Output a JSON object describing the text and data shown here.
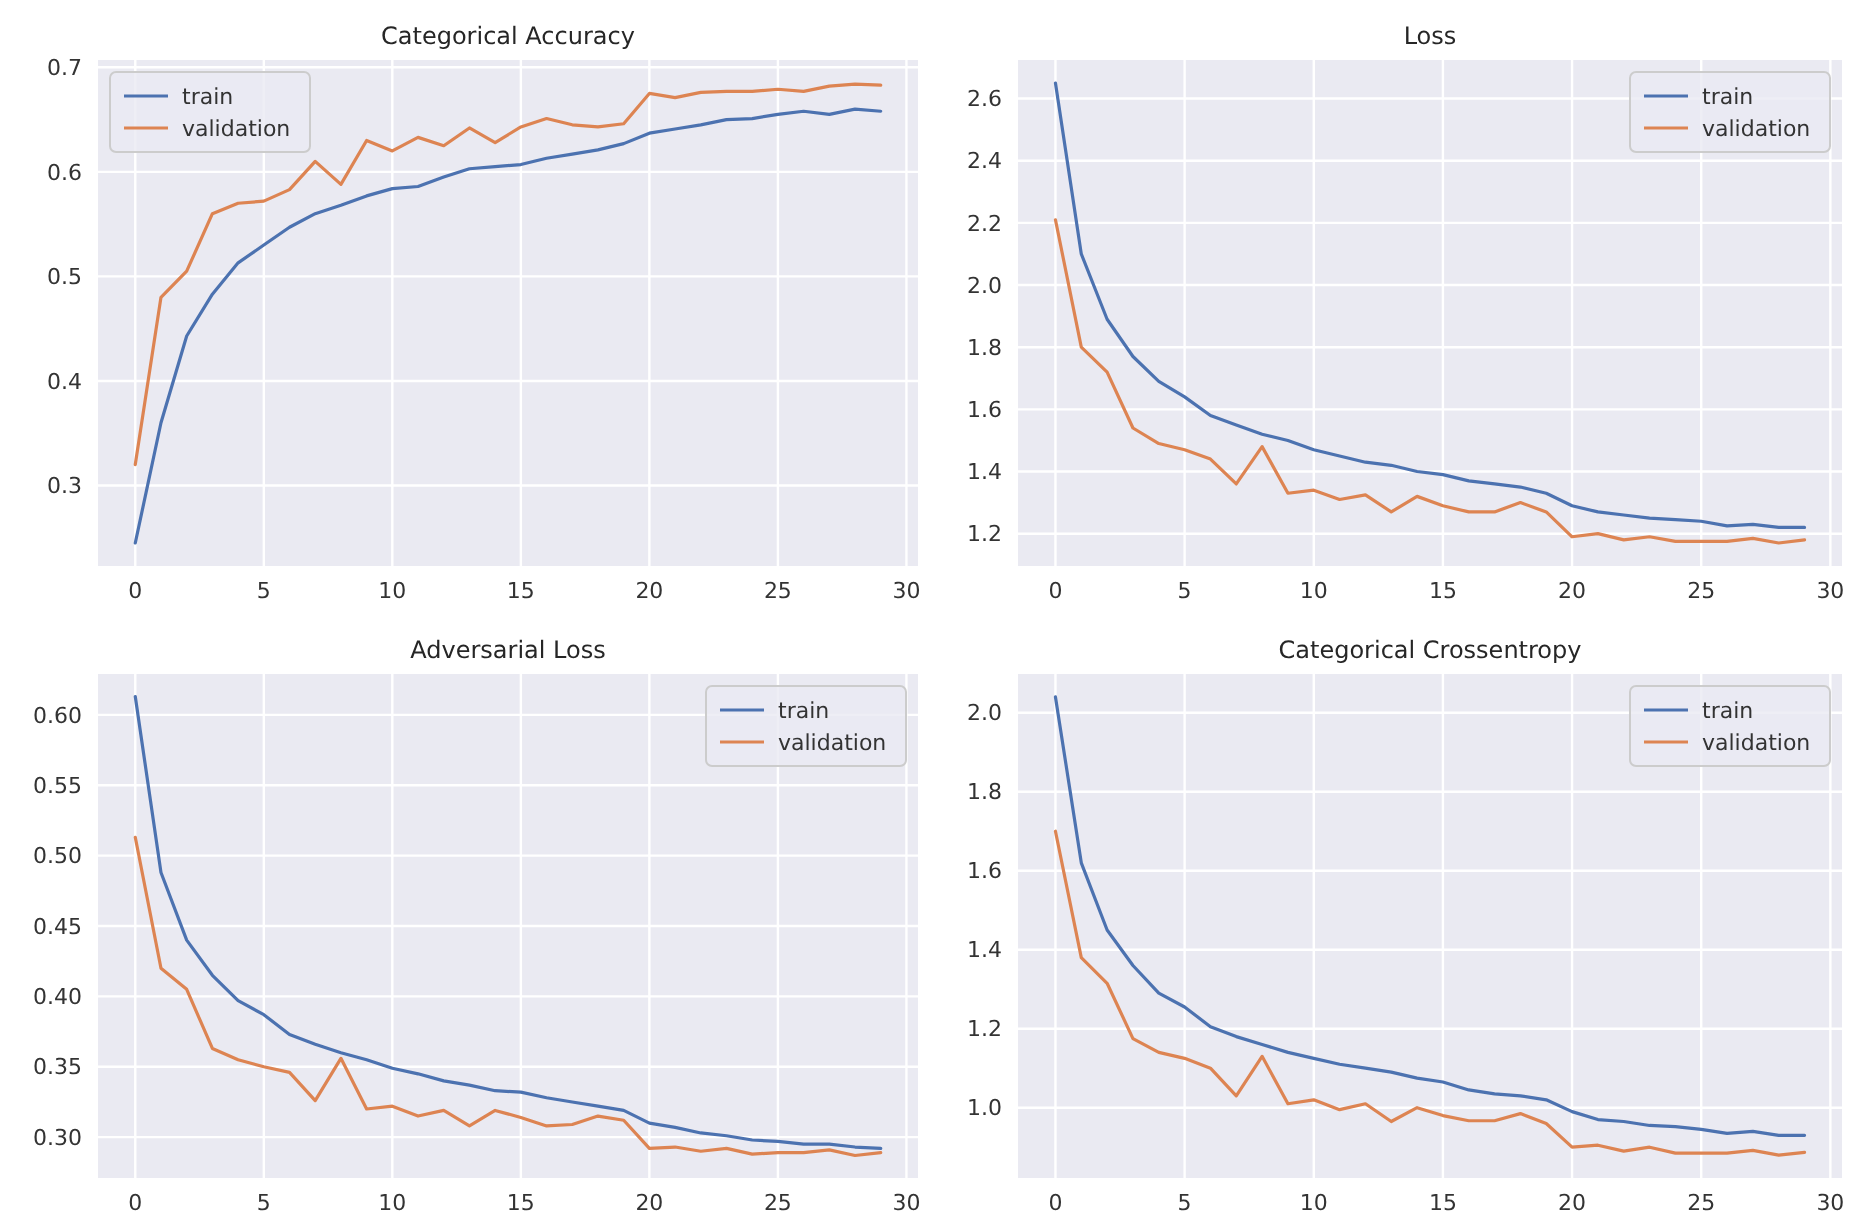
{
  "chart_data": [
    {
      "type": "line",
      "title": "Categorical Accuracy",
      "legend": "top left",
      "grid": true,
      "xlim": [
        -1.45,
        30.45
      ],
      "xticks": [
        0,
        5,
        10,
        15,
        20,
        25,
        30
      ],
      "ylim": [
        0.223,
        0.707
      ],
      "yticks": [
        0.3,
        0.4,
        0.5,
        0.6,
        0.7
      ],
      "x": [
        0,
        1,
        2,
        3,
        4,
        5,
        6,
        7,
        8,
        9,
        10,
        11,
        12,
        13,
        14,
        15,
        16,
        17,
        18,
        19,
        20,
        21,
        22,
        23,
        24,
        25,
        26,
        27,
        28,
        29
      ],
      "series": [
        {
          "name": "train",
          "color": "#4c72b0",
          "values": [
            0.245,
            0.36,
            0.443,
            0.483,
            0.513,
            0.53,
            0.547,
            0.56,
            0.568,
            0.577,
            0.584,
            0.586,
            0.595,
            0.603,
            0.605,
            0.607,
            0.613,
            0.617,
            0.621,
            0.627,
            0.637,
            0.641,
            0.645,
            0.65,
            0.651,
            0.655,
            0.658,
            0.655,
            0.66,
            0.658
          ]
        },
        {
          "name": "validation",
          "color": "#dd8452",
          "values": [
            0.32,
            0.48,
            0.505,
            0.56,
            0.57,
            0.572,
            0.583,
            0.61,
            0.588,
            0.63,
            0.62,
            0.633,
            0.625,
            0.642,
            0.628,
            0.643,
            0.651,
            0.645,
            0.643,
            0.646,
            0.675,
            0.671,
            0.676,
            0.677,
            0.677,
            0.679,
            0.677,
            0.682,
            0.684,
            0.683
          ]
        }
      ]
    },
    {
      "type": "line",
      "title": "Loss",
      "legend": "top right",
      "grid": true,
      "xlim": [
        -1.45,
        30.45
      ],
      "xticks": [
        0,
        5,
        10,
        15,
        20,
        25,
        30
      ],
      "ylim": [
        1.096,
        2.724
      ],
      "yticks": [
        1.2,
        1.4,
        1.6,
        1.8,
        {
          "value": 2,
          "label": "2.0"
        },
        2.2,
        2.4,
        2.6
      ],
      "x": [
        0,
        1,
        2,
        3,
        4,
        5,
        6,
        7,
        8,
        9,
        10,
        11,
        12,
        13,
        14,
        15,
        16,
        17,
        18,
        19,
        20,
        21,
        22,
        23,
        24,
        25,
        26,
        27,
        28,
        29
      ],
      "series": [
        {
          "name": "train",
          "color": "#4c72b0",
          "values": [
            2.65,
            2.1,
            1.89,
            1.77,
            1.69,
            1.64,
            1.58,
            1.55,
            1.52,
            1.5,
            1.47,
            1.45,
            1.43,
            1.42,
            1.4,
            1.39,
            1.37,
            1.36,
            1.35,
            1.33,
            1.29,
            1.27,
            1.26,
            1.25,
            1.245,
            1.24,
            1.225,
            1.23,
            1.22,
            1.22
          ]
        },
        {
          "name": "validation",
          "color": "#dd8452",
          "values": [
            2.21,
            1.8,
            1.72,
            1.54,
            1.49,
            1.47,
            1.44,
            1.36,
            1.48,
            1.33,
            1.34,
            1.31,
            1.325,
            1.27,
            1.32,
            1.29,
            1.27,
            1.27,
            1.3,
            1.27,
            1.19,
            1.2,
            1.18,
            1.19,
            1.175,
            1.175,
            1.175,
            1.185,
            1.17,
            1.18
          ]
        }
      ]
    },
    {
      "type": "line",
      "title": "Adversarial Loss",
      "legend": "top right",
      "grid": true,
      "xlim": [
        -1.45,
        30.45
      ],
      "xticks": [
        0,
        5,
        10,
        15,
        20,
        25,
        30
      ],
      "ylim": [
        0.271,
        0.629
      ],
      "yticks": [
        {
          "value": 0.3,
          "label": "0.30"
        },
        0.35,
        {
          "value": 0.4,
          "label": "0.40"
        },
        0.45,
        {
          "value": 0.5,
          "label": "0.50"
        },
        0.55,
        {
          "value": 0.6,
          "label": "0.60"
        }
      ],
      "x": [
        0,
        1,
        2,
        3,
        4,
        5,
        6,
        7,
        8,
        9,
        10,
        11,
        12,
        13,
        14,
        15,
        16,
        17,
        18,
        19,
        20,
        21,
        22,
        23,
        24,
        25,
        26,
        27,
        28,
        29
      ],
      "series": [
        {
          "name": "train",
          "color": "#4c72b0",
          "values": [
            0.613,
            0.488,
            0.44,
            0.415,
            0.397,
            0.387,
            0.373,
            0.366,
            0.36,
            0.355,
            0.349,
            0.345,
            0.34,
            0.337,
            0.333,
            0.332,
            0.328,
            0.325,
            0.322,
            0.319,
            0.31,
            0.307,
            0.303,
            0.301,
            0.298,
            0.297,
            0.295,
            0.295,
            0.293,
            0.292
          ]
        },
        {
          "name": "validation",
          "color": "#dd8452",
          "values": [
            0.513,
            0.42,
            0.405,
            0.363,
            0.355,
            0.35,
            0.346,
            0.326,
            0.356,
            0.32,
            0.322,
            0.315,
            0.319,
            0.308,
            0.319,
            0.314,
            0.308,
            0.309,
            0.315,
            0.312,
            0.292,
            0.293,
            0.29,
            0.292,
            0.288,
            0.289,
            0.289,
            0.291,
            0.287,
            0.289
          ]
        }
      ]
    },
    {
      "type": "line",
      "title": "Categorical Crossentropy",
      "legend": "top right",
      "grid": true,
      "xlim": [
        -1.45,
        30.45
      ],
      "xticks": [
        0,
        5,
        10,
        15,
        20,
        25,
        30
      ],
      "ylim": [
        0.822,
        2.098
      ],
      "yticks": [
        {
          "value": 1,
          "label": "1.0"
        },
        1.2,
        1.4,
        1.6,
        1.8,
        {
          "value": 2,
          "label": "2.0"
        }
      ],
      "x": [
        0,
        1,
        2,
        3,
        4,
        5,
        6,
        7,
        8,
        9,
        10,
        11,
        12,
        13,
        14,
        15,
        16,
        17,
        18,
        19,
        20,
        21,
        22,
        23,
        24,
        25,
        26,
        27,
        28,
        29
      ],
      "series": [
        {
          "name": "train",
          "color": "#4c72b0",
          "values": [
            2.04,
            1.62,
            1.45,
            1.36,
            1.29,
            1.255,
            1.205,
            1.18,
            1.16,
            1.14,
            1.125,
            1.11,
            1.1,
            1.09,
            1.075,
            1.065,
            1.045,
            1.035,
            1.03,
            1.02,
            0.99,
            0.97,
            0.965,
            0.955,
            0.952,
            0.945,
            0.935,
            0.94,
            0.93,
            0.93
          ]
        },
        {
          "name": "validation",
          "color": "#dd8452",
          "values": [
            1.7,
            1.38,
            1.315,
            1.175,
            1.14,
            1.125,
            1.1,
            1.03,
            1.13,
            1.01,
            1.02,
            0.995,
            1.01,
            0.965,
            1.0,
            0.98,
            0.967,
            0.967,
            0.985,
            0.96,
            0.9,
            0.905,
            0.89,
            0.9,
            0.885,
            0.885,
            0.885,
            0.892,
            0.88,
            0.887
          ]
        }
      ]
    }
  ]
}
